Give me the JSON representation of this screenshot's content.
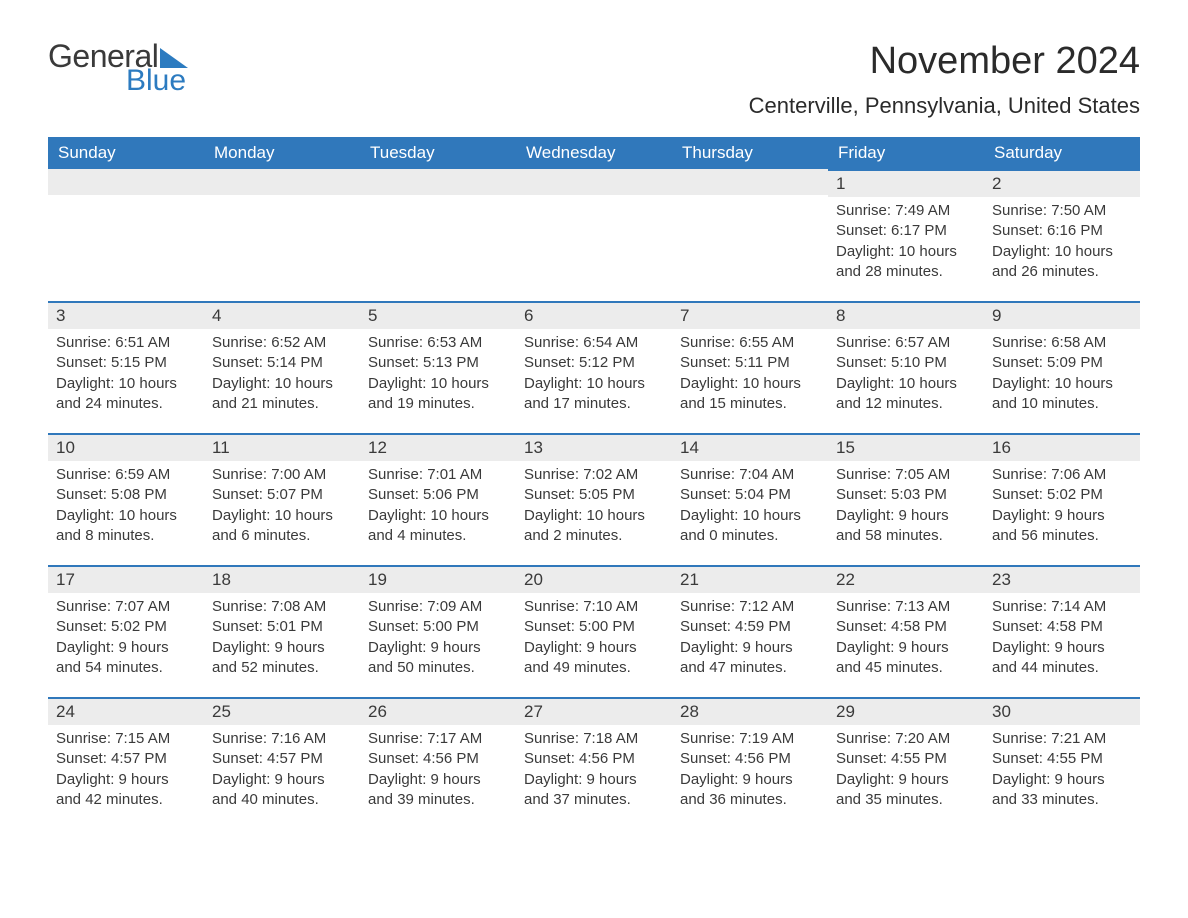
{
  "logo": {
    "word1": "General",
    "word2": "Blue"
  },
  "title": "November 2024",
  "location": "Centerville, Pennsylvania, United States",
  "colors": {
    "header_bg": "#3078bb",
    "header_text": "#ffffff",
    "daynum_bg": "#ececec",
    "daynum_border": "#3078bb",
    "text": "#3a3a3a",
    "logo_blue": "#2c7bc0"
  },
  "typography": {
    "month_title_pt": 38,
    "location_pt": 22,
    "dayheader_pt": 17,
    "daynum_pt": 17,
    "body_pt": 15
  },
  "day_headers": [
    "Sunday",
    "Monday",
    "Tuesday",
    "Wednesday",
    "Thursday",
    "Friday",
    "Saturday"
  ],
  "weeks": [
    [
      null,
      null,
      null,
      null,
      null,
      {
        "n": "1",
        "sunrise": "7:49 AM",
        "sunset": "6:17 PM",
        "dl1": "10 hours",
        "dl2": "and 28 minutes."
      },
      {
        "n": "2",
        "sunrise": "7:50 AM",
        "sunset": "6:16 PM",
        "dl1": "10 hours",
        "dl2": "and 26 minutes."
      }
    ],
    [
      {
        "n": "3",
        "sunrise": "6:51 AM",
        "sunset": "5:15 PM",
        "dl1": "10 hours",
        "dl2": "and 24 minutes."
      },
      {
        "n": "4",
        "sunrise": "6:52 AM",
        "sunset": "5:14 PM",
        "dl1": "10 hours",
        "dl2": "and 21 minutes."
      },
      {
        "n": "5",
        "sunrise": "6:53 AM",
        "sunset": "5:13 PM",
        "dl1": "10 hours",
        "dl2": "and 19 minutes."
      },
      {
        "n": "6",
        "sunrise": "6:54 AM",
        "sunset": "5:12 PM",
        "dl1": "10 hours",
        "dl2": "and 17 minutes."
      },
      {
        "n": "7",
        "sunrise": "6:55 AM",
        "sunset": "5:11 PM",
        "dl1": "10 hours",
        "dl2": "and 15 minutes."
      },
      {
        "n": "8",
        "sunrise": "6:57 AM",
        "sunset": "5:10 PM",
        "dl1": "10 hours",
        "dl2": "and 12 minutes."
      },
      {
        "n": "9",
        "sunrise": "6:58 AM",
        "sunset": "5:09 PM",
        "dl1": "10 hours",
        "dl2": "and 10 minutes."
      }
    ],
    [
      {
        "n": "10",
        "sunrise": "6:59 AM",
        "sunset": "5:08 PM",
        "dl1": "10 hours",
        "dl2": "and 8 minutes."
      },
      {
        "n": "11",
        "sunrise": "7:00 AM",
        "sunset": "5:07 PM",
        "dl1": "10 hours",
        "dl2": "and 6 minutes."
      },
      {
        "n": "12",
        "sunrise": "7:01 AM",
        "sunset": "5:06 PM",
        "dl1": "10 hours",
        "dl2": "and 4 minutes."
      },
      {
        "n": "13",
        "sunrise": "7:02 AM",
        "sunset": "5:05 PM",
        "dl1": "10 hours",
        "dl2": "and 2 minutes."
      },
      {
        "n": "14",
        "sunrise": "7:04 AM",
        "sunset": "5:04 PM",
        "dl1": "10 hours",
        "dl2": "and 0 minutes."
      },
      {
        "n": "15",
        "sunrise": "7:05 AM",
        "sunset": "5:03 PM",
        "dl1": "9 hours",
        "dl2": "and 58 minutes."
      },
      {
        "n": "16",
        "sunrise": "7:06 AM",
        "sunset": "5:02 PM",
        "dl1": "9 hours",
        "dl2": "and 56 minutes."
      }
    ],
    [
      {
        "n": "17",
        "sunrise": "7:07 AM",
        "sunset": "5:02 PM",
        "dl1": "9 hours",
        "dl2": "and 54 minutes."
      },
      {
        "n": "18",
        "sunrise": "7:08 AM",
        "sunset": "5:01 PM",
        "dl1": "9 hours",
        "dl2": "and 52 minutes."
      },
      {
        "n": "19",
        "sunrise": "7:09 AM",
        "sunset": "5:00 PM",
        "dl1": "9 hours",
        "dl2": "and 50 minutes."
      },
      {
        "n": "20",
        "sunrise": "7:10 AM",
        "sunset": "5:00 PM",
        "dl1": "9 hours",
        "dl2": "and 49 minutes."
      },
      {
        "n": "21",
        "sunrise": "7:12 AM",
        "sunset": "4:59 PM",
        "dl1": "9 hours",
        "dl2": "and 47 minutes."
      },
      {
        "n": "22",
        "sunrise": "7:13 AM",
        "sunset": "4:58 PM",
        "dl1": "9 hours",
        "dl2": "and 45 minutes."
      },
      {
        "n": "23",
        "sunrise": "7:14 AM",
        "sunset": "4:58 PM",
        "dl1": "9 hours",
        "dl2": "and 44 minutes."
      }
    ],
    [
      {
        "n": "24",
        "sunrise": "7:15 AM",
        "sunset": "4:57 PM",
        "dl1": "9 hours",
        "dl2": "and 42 minutes."
      },
      {
        "n": "25",
        "sunrise": "7:16 AM",
        "sunset": "4:57 PM",
        "dl1": "9 hours",
        "dl2": "and 40 minutes."
      },
      {
        "n": "26",
        "sunrise": "7:17 AM",
        "sunset": "4:56 PM",
        "dl1": "9 hours",
        "dl2": "and 39 minutes."
      },
      {
        "n": "27",
        "sunrise": "7:18 AM",
        "sunset": "4:56 PM",
        "dl1": "9 hours",
        "dl2": "and 37 minutes."
      },
      {
        "n": "28",
        "sunrise": "7:19 AM",
        "sunset": "4:56 PM",
        "dl1": "9 hours",
        "dl2": "and 36 minutes."
      },
      {
        "n": "29",
        "sunrise": "7:20 AM",
        "sunset": "4:55 PM",
        "dl1": "9 hours",
        "dl2": "and 35 minutes."
      },
      {
        "n": "30",
        "sunrise": "7:21 AM",
        "sunset": "4:55 PM",
        "dl1": "9 hours",
        "dl2": "and 33 minutes."
      }
    ]
  ],
  "labels": {
    "sunrise": "Sunrise: ",
    "sunset": "Sunset: ",
    "daylight": "Daylight: "
  }
}
